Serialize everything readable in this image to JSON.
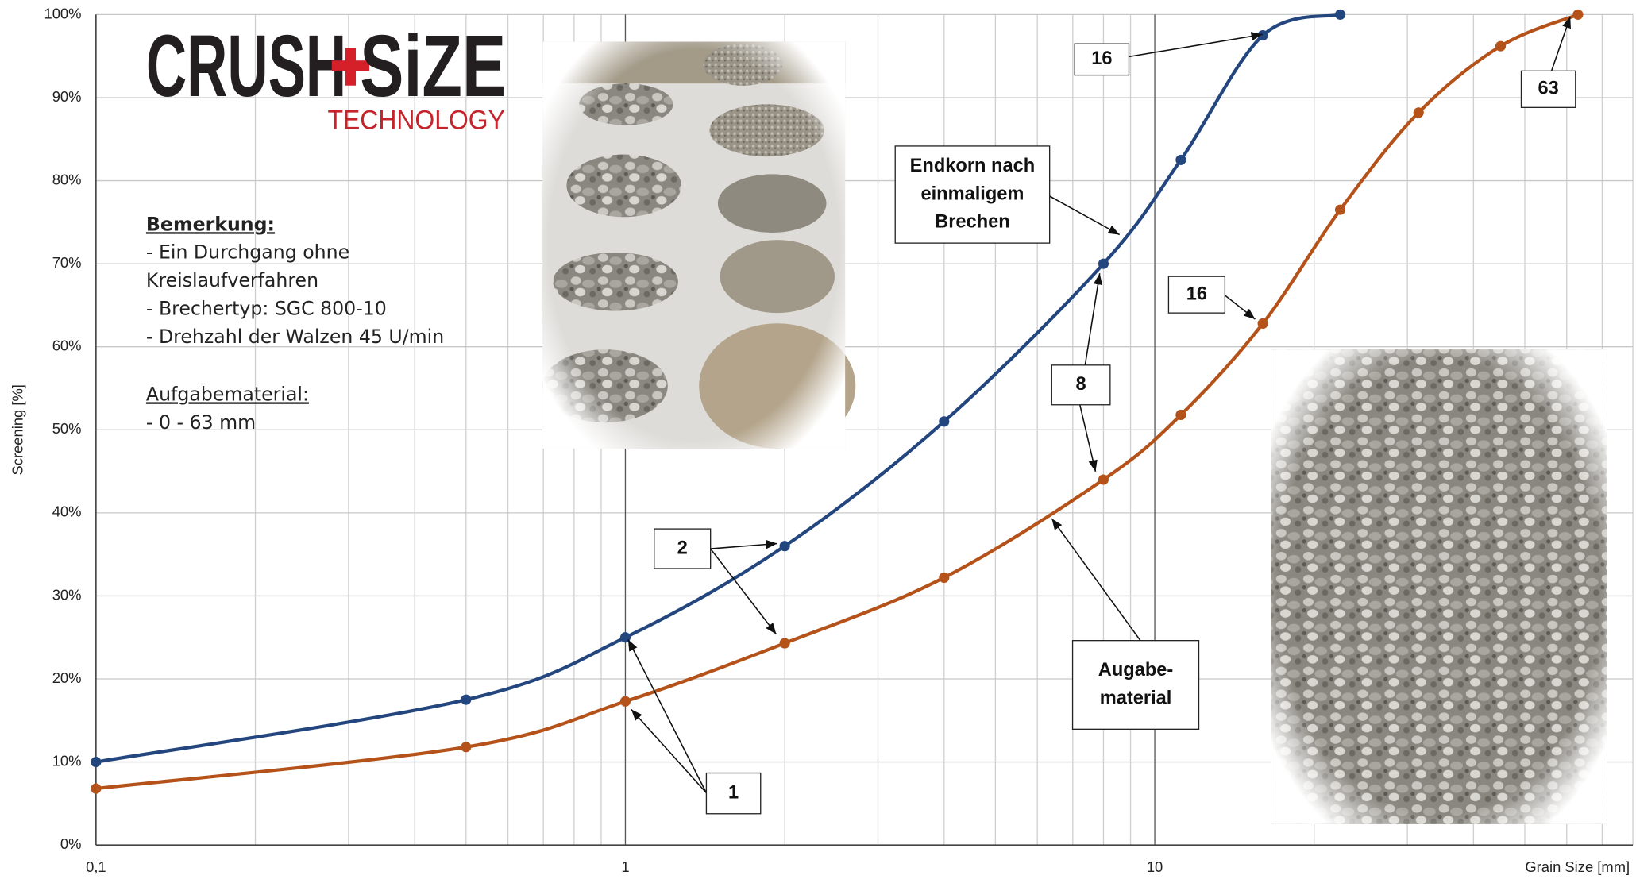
{
  "chart_data": {
    "type": "line",
    "xlabel": "Grain Size [mm]",
    "ylabel": "Screening [%]",
    "xscale": "log",
    "xlim": [
      0.1,
      80
    ],
    "ylim": [
      0,
      100
    ],
    "xticks": [
      {
        "value": 0.1,
        "label": "0,1"
      },
      1,
      10
    ],
    "xminorticks": [
      0.2,
      0.3,
      0.4,
      0.5,
      0.6,
      0.7,
      0.8,
      0.9,
      2,
      3,
      4,
      5,
      6,
      7,
      8,
      9,
      20,
      30,
      40,
      50,
      60,
      70,
      80
    ],
    "yticks": [
      {
        "value": 0,
        "label": "0%"
      },
      {
        "value": 10,
        "label": "10%"
      },
      {
        "value": 20,
        "label": "20%"
      },
      {
        "value": 30,
        "label": "30%"
      },
      {
        "value": 40,
        "label": "40%"
      },
      {
        "value": 50,
        "label": "50%"
      },
      {
        "value": 60,
        "label": "60%"
      },
      {
        "value": 70,
        "label": "70%"
      },
      {
        "value": 80,
        "label": "80%"
      },
      {
        "value": 90,
        "label": "90%"
      },
      {
        "value": 100,
        "label": "100%"
      }
    ],
    "grid": true,
    "series": [
      {
        "color": "#24467e",
        "x": [
          0.1,
          0.5,
          1,
          2,
          4,
          8,
          11.2,
          16,
          22.4
        ],
        "values": [
          10,
          17.5,
          25,
          36,
          51,
          70,
          82.5,
          97.5,
          100
        ]
      },
      {
        "color": "#b4521a",
        "x": [
          0.1,
          0.5,
          1,
          2,
          4,
          8,
          11.2,
          16,
          22.4,
          31.5,
          45,
          63
        ],
        "values": [
          6.8,
          11.8,
          17.3,
          24.3,
          32.2,
          44,
          51.8,
          62.8,
          76.5,
          88.2,
          96.2,
          100
        ]
      }
    ]
  },
  "annotations": [
    {
      "lines": [
        "16"
      ]
    },
    {
      "lines": [
        "63"
      ]
    },
    {
      "lines": [
        "Endkorn nach",
        "einmaligem",
        "Brechen"
      ]
    },
    {
      "lines": [
        "16"
      ]
    },
    {
      "lines": [
        "8"
      ]
    },
    {
      "lines": [
        "2"
      ]
    },
    {
      "lines": [
        "1"
      ]
    },
    {
      "lines": [
        "Augabe-",
        "material"
      ]
    }
  ],
  "logo": {
    "word1": "CRUSH",
    "word2": "SiZE",
    "subtitle": "TECHNOLOGY"
  },
  "notes": {
    "heading": "Bemerkung:",
    "lines": [
      "- Ein Durchgang ohne",
      "Kreislaufverfahren",
      "- Brechertyp: SGC 800-10",
      "- Drehzahl der Walzen 45 U/min"
    ],
    "heading2": "Aufgabematerial:",
    "lines2": [
      "- 0 - 63 mm"
    ]
  }
}
